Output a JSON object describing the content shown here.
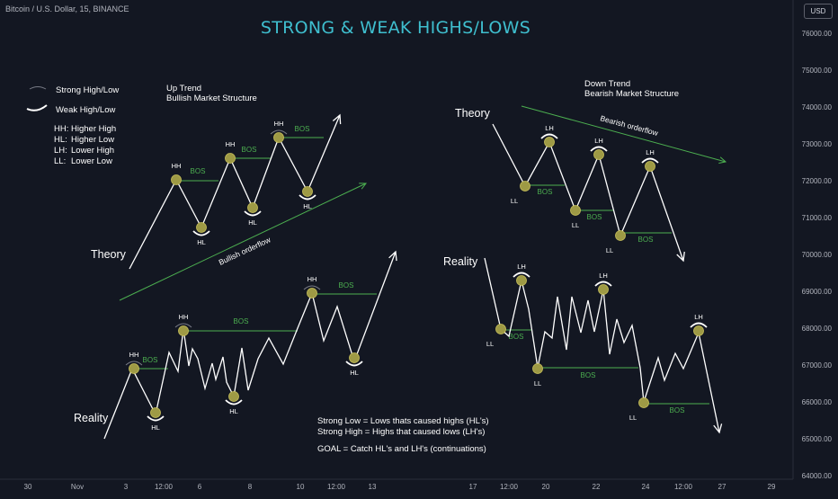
{
  "header": {
    "symbol": "Bitcoin / U.S. Dollar, 15, BINANCE",
    "currency": "USD"
  },
  "chart_data": {
    "type": "line",
    "title": "STRONG & WEAK HIGHS/LOWS",
    "price_scale": {
      "position": "right",
      "ticks": [
        "76000.00",
        "75000.00",
        "74000.00",
        "73000.00",
        "72000.00",
        "71000.00",
        "70000.00",
        "69000.00",
        "68000.00",
        "67000.00",
        "66000.00",
        "65000.00",
        "64000.00"
      ]
    },
    "time_axis": {
      "ticks": [
        "30",
        "Nov",
        "3",
        "12:00",
        "6",
        "8",
        "10",
        "12:00",
        "13",
        "17",
        "12:00",
        "20",
        "22",
        "24",
        "12:00",
        "27",
        "29"
      ]
    },
    "legend": [
      {
        "label": "Strong High/Low",
        "style": "thin-arc"
      },
      {
        "label": "Weak High/Low",
        "style": "thick-arc"
      }
    ],
    "definitions": [
      {
        "abbr": "HH:",
        "text": "Higher High"
      },
      {
        "abbr": "HL:",
        "text": "Higher Low"
      },
      {
        "abbr": "LH:",
        "text": "Lower High"
      },
      {
        "abbr": "LL:",
        "text": "Lower Low"
      }
    ],
    "section_titles": {
      "up_trend": [
        "Up Trend",
        "Bullish Market Structure"
      ],
      "down_trend": [
        "Down Trend",
        "Bearish Market Structure"
      ]
    },
    "panel_labels": {
      "theory": "Theory",
      "reality": "Reality"
    },
    "orderflow_labels": {
      "bullish": "Bullish orderflow",
      "bearish": "Bearish orderflow"
    },
    "bos_label": "BOS",
    "notes": [
      "Strong Low = Lows thats caused highs (HL's)",
      "Strong High =  Highs that caused lows (LH's)",
      "",
      "GOAL = Catch HL's and LH's (continuations)"
    ],
    "swing_labels": {
      "hh": "HH",
      "hl": "HL",
      "lh": "LH",
      "ll": "LL"
    },
    "diagrams": [
      {
        "name": "up-trend-theory",
        "path": [
          [
            144,
            299
          ],
          [
            196,
            200
          ],
          [
            224,
            253
          ],
          [
            256,
            176
          ],
          [
            281,
            231
          ],
          [
            310,
            153
          ],
          [
            342,
            213
          ],
          [
            378,
            128
          ]
        ],
        "points": [
          {
            "label": "HH",
            "pos": [
              196,
              200
            ],
            "label_side": "above"
          },
          {
            "label": "HL",
            "pos": [
              224,
              253
            ],
            "label_side": "below",
            "arc": "weak"
          },
          {
            "label": "HH",
            "pos": [
              256,
              176
            ],
            "label_side": "above"
          },
          {
            "label": "HL",
            "pos": [
              281,
              231
            ],
            "label_side": "below",
            "arc": "weak"
          },
          {
            "label": "HH",
            "pos": [
              310,
              153
            ],
            "label_side": "above",
            "arc": "strong"
          },
          {
            "label": "HL",
            "pos": [
              342,
              213
            ],
            "label_side": "below",
            "arc": "weak"
          }
        ],
        "bos": [
          {
            "from": [
              196,
              201
            ],
            "to": [
              243,
              201
            ],
            "label_pos": [
              220,
              193
            ]
          },
          {
            "from": [
              256,
              176
            ],
            "to": [
              302,
              176
            ],
            "label_pos": [
              277,
              169
            ]
          },
          {
            "from": [
              310,
              153
            ],
            "to": [
              360,
              153
            ],
            "label_pos": [
              336,
              146
            ]
          }
        ]
      },
      {
        "name": "down-trend-theory",
        "path": [
          [
            548,
            138
          ],
          [
            584,
            207
          ],
          [
            611,
            158
          ],
          [
            640,
            234
          ],
          [
            666,
            172
          ],
          [
            690,
            262
          ],
          [
            723,
            185
          ],
          [
            760,
            290
          ]
        ],
        "points": [
          {
            "label": "LL",
            "pos": [
              584,
              207
            ],
            "label_side": "below-left"
          },
          {
            "label": "LH",
            "pos": [
              611,
              158
            ],
            "label_side": "above",
            "arc": "weak"
          },
          {
            "label": "LL",
            "pos": [
              640,
              234
            ],
            "label_side": "below"
          },
          {
            "label": "LH",
            "pos": [
              666,
              172
            ],
            "label_side": "above",
            "arc": "weak"
          },
          {
            "label": "LL",
            "pos": [
              690,
              262
            ],
            "label_side": "below-left"
          },
          {
            "label": "LH",
            "pos": [
              723,
              185
            ],
            "label_side": "above",
            "arc": "weak"
          }
        ],
        "bos": [
          {
            "from": [
              584,
              206
            ],
            "to": [
              628,
              206
            ],
            "label_pos": [
              606,
              216
            ]
          },
          {
            "from": [
              640,
              234
            ],
            "to": [
              682,
              234
            ],
            "label_pos": [
              661,
              244
            ]
          },
          {
            "from": [
              690,
              259
            ],
            "to": [
              747,
              259
            ],
            "label_pos": [
              718,
              269
            ]
          }
        ]
      },
      {
        "name": "up-trend-reality",
        "path": [
          [
            116,
            488
          ],
          [
            147,
            410
          ],
          [
            173,
            461
          ],
          [
            188,
            392
          ],
          [
            198,
            413
          ],
          [
            204,
            366
          ],
          [
            210,
            407
          ],
          [
            214,
            388
          ],
          [
            220,
            399
          ],
          [
            228,
            432
          ],
          [
            236,
            404
          ],
          [
            240,
            422
          ],
          [
            248,
            397
          ],
          [
            252,
            425
          ],
          [
            260,
            441
          ],
          [
            269,
            387
          ],
          [
            276,
            434
          ],
          [
            287,
            399
          ],
          [
            299,
            376
          ],
          [
            315,
            405
          ],
          [
            331,
            365
          ],
          [
            347,
            326
          ],
          [
            360,
            379
          ],
          [
            375,
            341
          ],
          [
            394,
            402
          ],
          [
            440,
            280
          ]
        ],
        "points": [
          {
            "label": "HH",
            "pos": [
              149,
              410
            ],
            "label_side": "above",
            "arc": "strong"
          },
          {
            "label": "HL",
            "pos": [
              173,
              459
            ],
            "label_side": "below",
            "arc": "weak"
          },
          {
            "label": "HH",
            "pos": [
              204,
              368
            ],
            "label_side": "above",
            "arc": "strong"
          },
          {
            "label": "HL",
            "pos": [
              260,
              441
            ],
            "label_side": "below",
            "arc": "weak"
          },
          {
            "label": "HH",
            "pos": [
              347,
              326
            ],
            "label_side": "above",
            "arc": "strong"
          },
          {
            "label": "HL",
            "pos": [
              394,
              398
            ],
            "label_side": "below",
            "arc": "weak"
          }
        ],
        "bos": [
          {
            "from": [
              147,
              410
            ],
            "to": [
              187,
              410
            ],
            "label_pos": [
              167,
              403
            ]
          },
          {
            "from": [
              204,
              368
            ],
            "to": [
              331,
              368
            ],
            "label_pos": [
              268,
              360
            ]
          },
          {
            "from": [
              347,
              327
            ],
            "to": [
              419,
              327
            ],
            "label_pos": [
              385,
              320
            ]
          }
        ]
      },
      {
        "name": "down-trend-reality",
        "path": [
          [
            539,
            287
          ],
          [
            557,
            366
          ],
          [
            566,
            374
          ],
          [
            580,
            312
          ],
          [
            588,
            344
          ],
          [
            598,
            409
          ],
          [
            606,
            369
          ],
          [
            614,
            376
          ],
          [
            620,
            330
          ],
          [
            630,
            389
          ],
          [
            636,
            330
          ],
          [
            646,
            370
          ],
          [
            654,
            334
          ],
          [
            661,
            369
          ],
          [
            671,
            322
          ],
          [
            678,
            394
          ],
          [
            686,
            355
          ],
          [
            694,
            381
          ],
          [
            703,
            362
          ],
          [
            712,
            409
          ],
          [
            716,
            447
          ],
          [
            732,
            398
          ],
          [
            739,
            423
          ],
          [
            751,
            393
          ],
          [
            760,
            410
          ],
          [
            777,
            370
          ],
          [
            800,
            481
          ]
        ],
        "points": [
          {
            "label": "LL",
            "pos": [
              557,
              366
            ],
            "label_side": "below-left"
          },
          {
            "label": "LH",
            "pos": [
              580,
              312
            ],
            "label_side": "above",
            "arc": "weak"
          },
          {
            "label": "LL",
            "pos": [
              598,
              410
            ],
            "label_side": "below"
          },
          {
            "label": "LH",
            "pos": [
              671,
              322
            ],
            "label_side": "above",
            "arc": "weak"
          },
          {
            "label": "LL",
            "pos": [
              716,
              448
            ],
            "label_side": "below-left"
          },
          {
            "label": "LH",
            "pos": [
              777,
              368
            ],
            "label_side": "above",
            "arc": "weak"
          }
        ],
        "bos": [
          {
            "from": [
              557,
              367
            ],
            "to": [
              591,
              367
            ],
            "label_pos": [
              574,
              377
            ]
          },
          {
            "from": [
              598,
              409
            ],
            "to": [
              710,
              409
            ],
            "label_pos": [
              654,
              420
            ]
          },
          {
            "from": [
              716,
              449
            ],
            "to": [
              789,
              449
            ],
            "label_pos": [
              753,
              459
            ]
          }
        ]
      }
    ],
    "trendlines": [
      {
        "name": "bullish-orderflow-line",
        "from": [
          133,
          334
        ],
        "to": [
          407,
          204
        ]
      },
      {
        "name": "bearish-orderflow-line",
        "from": [
          580,
          118
        ],
        "to": [
          807,
          180
        ]
      }
    ],
    "colors": {
      "background": "#131722",
      "line": "#ffffff",
      "point_fill": "#9e9a45",
      "bos": "#4caf50",
      "title": "#3fbfcf",
      "text": "#ffffff",
      "axis_text": "#b2b5be",
      "strong_arc": "#787b86"
    }
  }
}
